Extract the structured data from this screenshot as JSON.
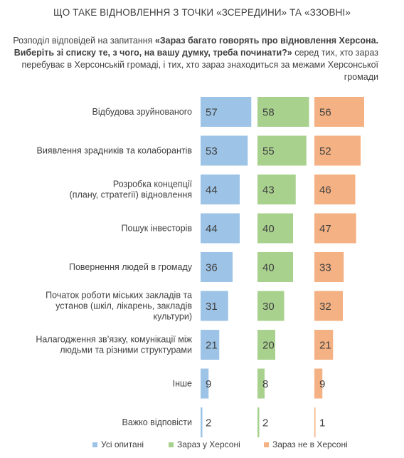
{
  "title": "ЩО ТАКЕ ВІДНОВЛЕННЯ З ТОЧКИ «ЗСЕРЕДИНИ» ТА «ЗЗОВНІ»",
  "subtitle": {
    "prefix": "Розподіл відповідей на запитання ",
    "question": "«Зараз багато говорять про відновлення Херсона. Виберіть зі списку те, з чого, на вашу думку, треба починати?»",
    "suffix": " серед тих, хто зараз перебуває в Херсонській громаді, і тих, хто зараз знаходиться за межами Херсонської громади"
  },
  "colors": {
    "all": "#9dc3e6",
    "in_kherson": "#a9d18e",
    "outside": "#f4b183"
  },
  "chart_data": {
    "type": "bar",
    "orientation": "horizontal",
    "title": "ЩО ТАКЕ ВІДНОВЛЕННЯ З ТОЧКИ «ЗСЕРЕДИНИ» ТА «ЗЗОВНІ»",
    "categories": [
      [
        "Відбудова зруйнованого"
      ],
      [
        "Виявлення зрадників та колаборантів"
      ],
      [
        "Розробка концепції",
        "(плану, стратегії) відновлення"
      ],
      [
        "Пошук інвесторів"
      ],
      [
        "Повернення людей в громаду"
      ],
      [
        "Початок роботи міських закладів та",
        "установ (шкіл, лікарень, закладів",
        "культури)"
      ],
      [
        "Налагодження зв’язку, комунікації між",
        "людьми та різними структурами"
      ],
      [
        "Інше"
      ],
      [
        "Важко відповісти"
      ]
    ],
    "series": [
      {
        "name": "Усі опитані",
        "values": [
          57,
          53,
          44,
          44,
          36,
          31,
          21,
          9,
          2
        ]
      },
      {
        "name": "Зараз у Херсоні",
        "values": [
          58,
          55,
          43,
          40,
          40,
          30,
          20,
          8,
          2
        ]
      },
      {
        "name": "Зараз не в Херсоні",
        "values": [
          56,
          52,
          46,
          47,
          33,
          32,
          21,
          9,
          1
        ]
      }
    ],
    "unit": "%",
    "xlim": [
      0,
      60
    ],
    "legend_position": "bottom",
    "grid": false
  }
}
